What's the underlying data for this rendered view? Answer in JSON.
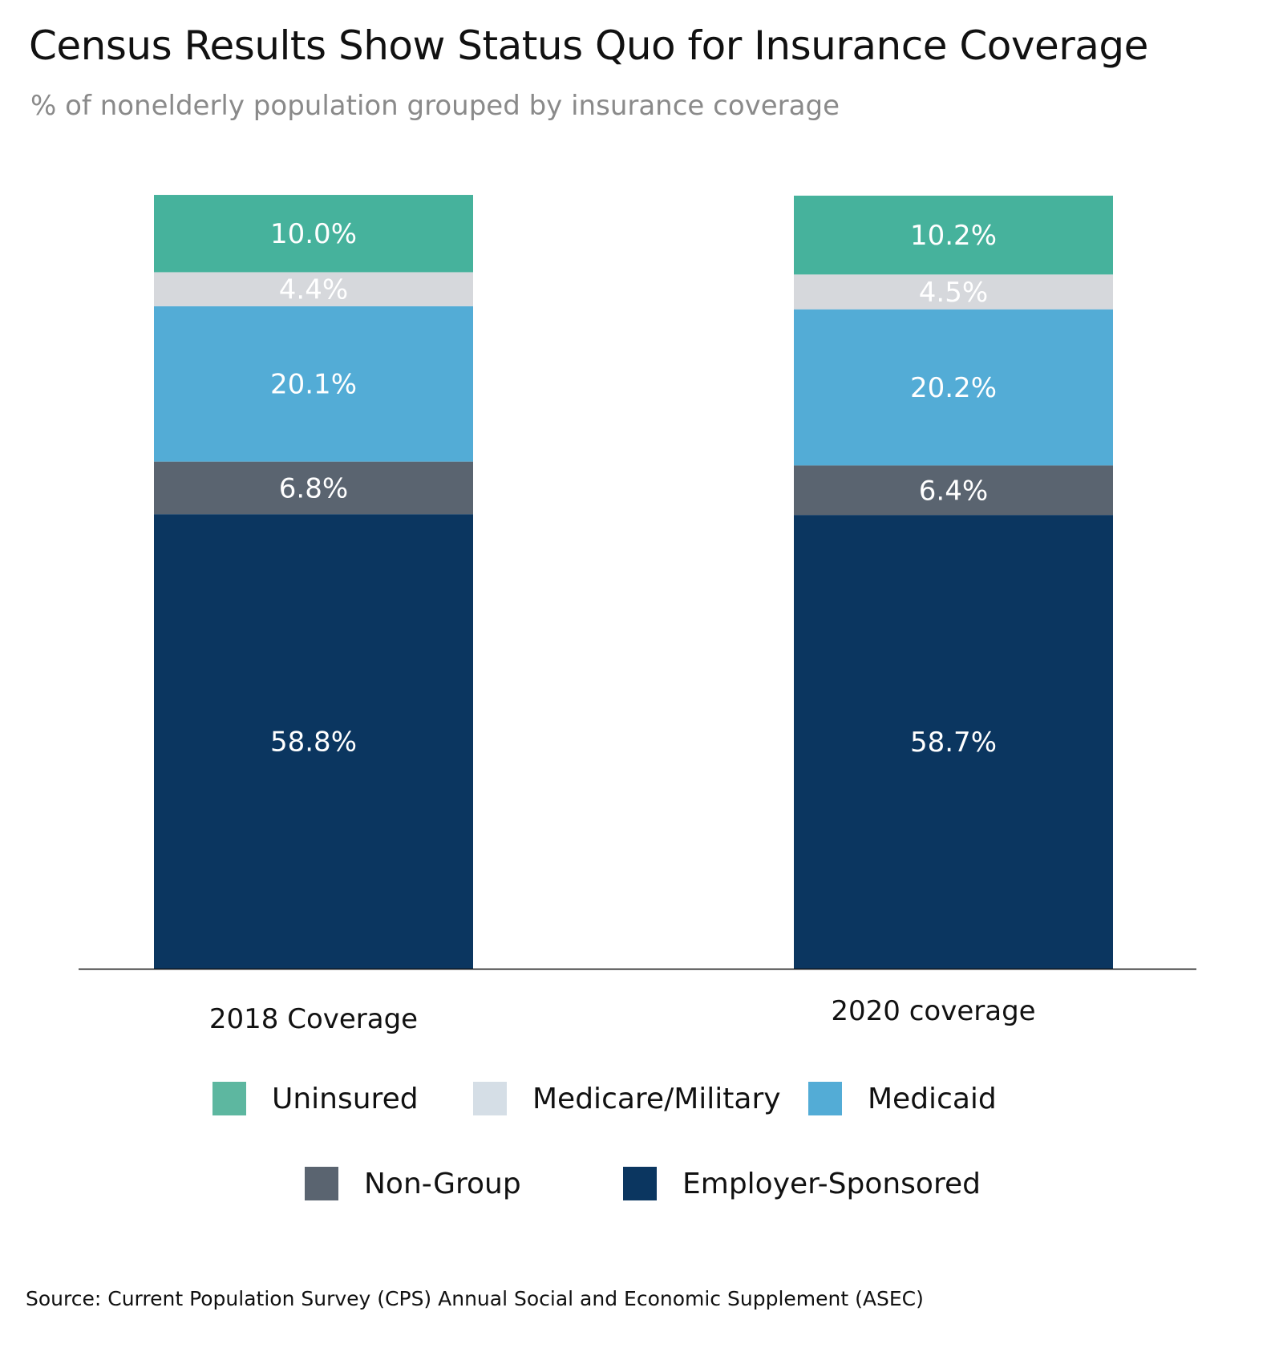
{
  "header": {
    "title": "Census Results Show Status Quo for Insurance Coverage",
    "subtitle": "% of nonelderly population grouped by insurance coverage"
  },
  "chart_data": {
    "type": "bar",
    "stacked": true,
    "categories": [
      "2018 Coverage",
      "2020 coverage"
    ],
    "series": [
      {
        "name": "Employer-Sponsored",
        "values": [
          58.8,
          58.7
        ],
        "labels": [
          "58.8%",
          "58.7%"
        ],
        "color": "#0b3660"
      },
      {
        "name": "Non-Group",
        "values": [
          6.8,
          6.4
        ],
        "labels": [
          "6.8%",
          "6.4%"
        ],
        "color": "#5a6470"
      },
      {
        "name": "Medicaid",
        "values": [
          20.1,
          20.2
        ],
        "labels": [
          "20.1%",
          "20.2%"
        ],
        "color": "#53acd6"
      },
      {
        "name": "Medicare/Military",
        "values": [
          4.4,
          4.5
        ],
        "labels": [
          "4.4%",
          "4.5%"
        ],
        "color": "#d6d8dc"
      },
      {
        "name": "Uninsured",
        "values": [
          10.0,
          10.2
        ],
        "labels": [
          "10.0%",
          "10.2%"
        ],
        "color": "#46b29c"
      }
    ],
    "ylim": [
      0,
      100
    ],
    "grid": false,
    "legend_position": "bottom"
  },
  "legend": {
    "rows": [
      [
        {
          "label": "Uninsured",
          "color": "#5db7a0"
        },
        {
          "label": "Medicare/Military",
          "color": "#d5dee6"
        },
        {
          "label": "Medicaid",
          "color": "#53acd6"
        }
      ],
      [
        {
          "label": "Non-Group",
          "color": "#5a6470"
        },
        {
          "label": "Employer-Sponsored",
          "color": "#0b3660"
        }
      ]
    ]
  },
  "footer": {
    "source": "Source: Current Population Survey (CPS) Annual Social and Economic Supplement (ASEC)"
  }
}
